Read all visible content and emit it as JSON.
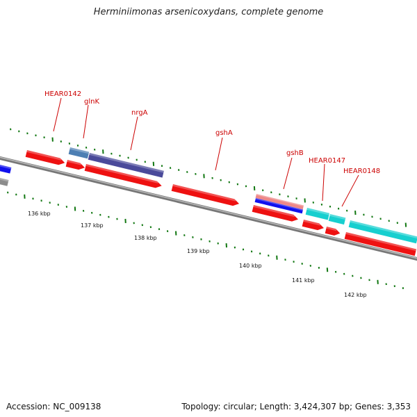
{
  "map": {
    "title": "Herminiimonas arsenicoxydans, complete genome",
    "accession_text": "Accession: NC_009138",
    "summary_text": "Topology: circular; Length: 3,424,307 bp; Genes: 3,353"
  },
  "colors": {
    "backbone": "#8c8c8c",
    "cds_red": "#ee1111",
    "slate_blue": "#4a4a9a",
    "steel_blue": "#4d7fb3",
    "cyan": "#17cfcf",
    "salmon": "#ee8888",
    "blue": "#1111ee",
    "tick_green": "#117711",
    "label_red": "#cc0000"
  },
  "scale_labels": [
    "136 kbp",
    "137 kbp",
    "138 kbp",
    "139 kbp",
    "140 kbp",
    "141 kbp",
    "142 kbp"
  ],
  "gene_labels": [
    "HEAR0142",
    "glnK",
    "nrgA",
    "gshA",
    "gshB",
    "HEAR0147",
    "HEAR0148"
  ],
  "features": [
    {
      "name": "partial-left-blue",
      "strand": "upper",
      "color": "blue"
    },
    {
      "name": "partial-left-grey",
      "strand": "lower",
      "color": "backbone"
    },
    {
      "name": "HEAR0142-cds",
      "strand": "plus",
      "color": "cds_red"
    },
    {
      "name": "glnK-gene",
      "strand": "plus",
      "color": "steel_blue"
    },
    {
      "name": "glnK-cds",
      "strand": "plus",
      "color": "cds_red"
    },
    {
      "name": "nrgA-gene",
      "strand": "plus",
      "color": "slate_blue"
    },
    {
      "name": "nrgA-cds",
      "strand": "plus",
      "color": "cds_red"
    },
    {
      "name": "gshA-cds",
      "strand": "plus",
      "color": "cds_red"
    },
    {
      "name": "gshB-gene",
      "strand": "plus",
      "color": "salmon"
    },
    {
      "name": "gshB-blue",
      "strand": "plus",
      "color": "blue"
    },
    {
      "name": "gshB-cds",
      "strand": "plus",
      "color": "cds_red"
    },
    {
      "name": "HEAR0147-gene",
      "strand": "plus",
      "color": "cyan"
    },
    {
      "name": "HEAR0147-cds",
      "strand": "plus",
      "color": "cds_red"
    },
    {
      "name": "HEAR0148-gene-a",
      "strand": "plus",
      "color": "cyan"
    },
    {
      "name": "HEAR0148-cds-a",
      "strand": "plus",
      "color": "cds_red"
    },
    {
      "name": "HEAR0148-gene-b",
      "strand": "plus",
      "color": "cyan"
    },
    {
      "name": "HEAR0148-cds-b",
      "strand": "plus",
      "color": "cds_red"
    }
  ]
}
